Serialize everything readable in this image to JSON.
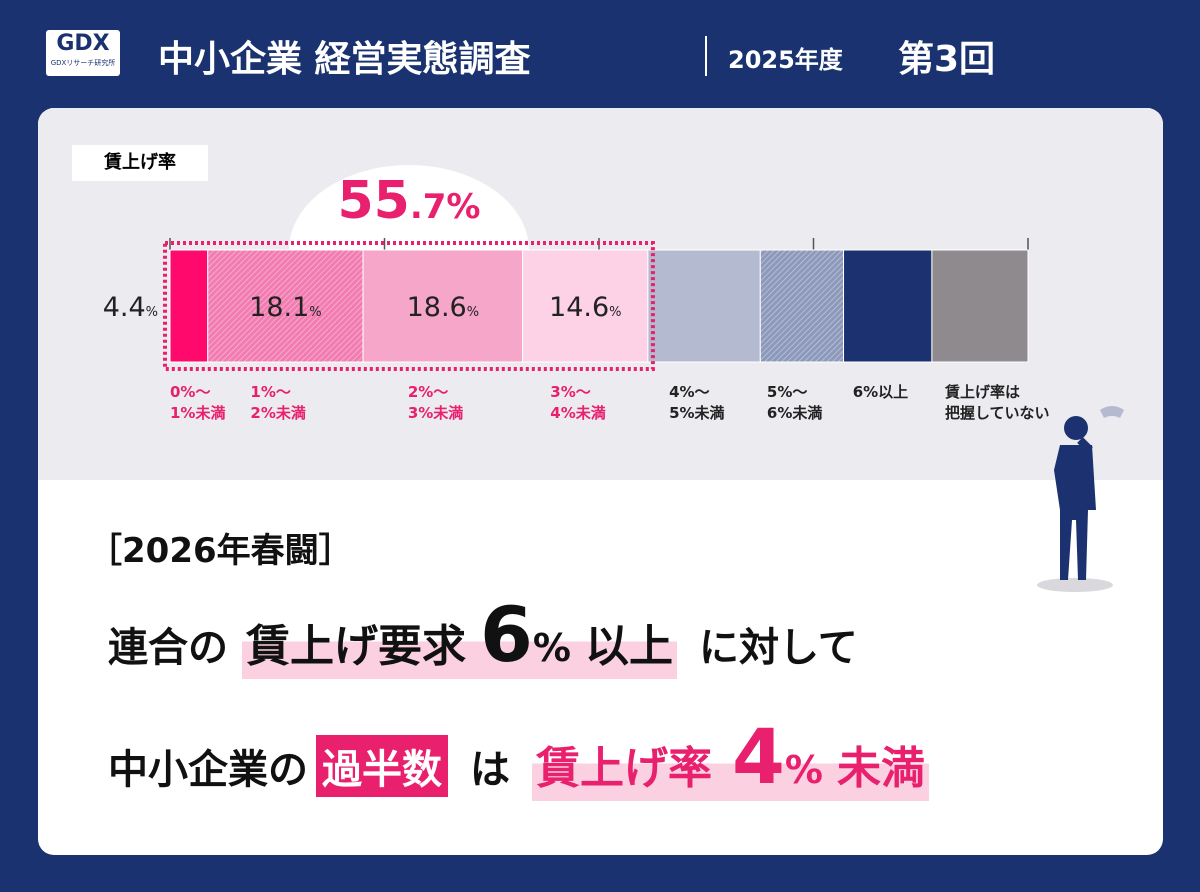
{
  "header": {
    "logo": "GDX",
    "logo_sub": "GDXリサーチ研究所",
    "title": "中小企業 経営実態調査",
    "fiscal_year": "2025年度",
    "edition": "第3回"
  },
  "chart_data": {
    "type": "stacked-bar",
    "title": "賃上げ率",
    "categories": [
      "0%～\n1%未満",
      "1%～\n2%未満",
      "2%～\n3%未満",
      "3%～\n4%未満",
      "4%～\n5%未満",
      "5%～\n6%未満",
      "6%以上",
      "賃上げ率は\n把握していない"
    ],
    "values": [
      4.4,
      18.1,
      18.6,
      14.6,
      13.1,
      9.7,
      10.3,
      11.2
    ],
    "value_labels": [
      "4.4%",
      "18.1%",
      "18.6%",
      "14.6%",
      null,
      null,
      null,
      null
    ],
    "colors": [
      "#ff0a6c",
      "#f27cb1",
      "#f6a6c9",
      "#fdd2e6",
      "#b4bbd0",
      "#8d99bb",
      "#1c3270",
      "#8e8a8d"
    ],
    "hatched": [
      false,
      true,
      false,
      false,
      false,
      true,
      false,
      false
    ],
    "xlim": [
      0,
      100
    ],
    "xticks": [
      0,
      25,
      50,
      75,
      100
    ],
    "annotation": {
      "value": 55.7,
      "label": "55.7%",
      "color": "#e8206e"
    }
  },
  "headline": {
    "tag": "［2026年春闘］",
    "line1": [
      "連合の",
      "賃上げ要求",
      "6",
      "%",
      "以上",
      "に対して"
    ],
    "line2": [
      "中小企業の",
      "過半数",
      "は",
      "賃上げ率",
      "4",
      "%",
      "未満"
    ]
  }
}
